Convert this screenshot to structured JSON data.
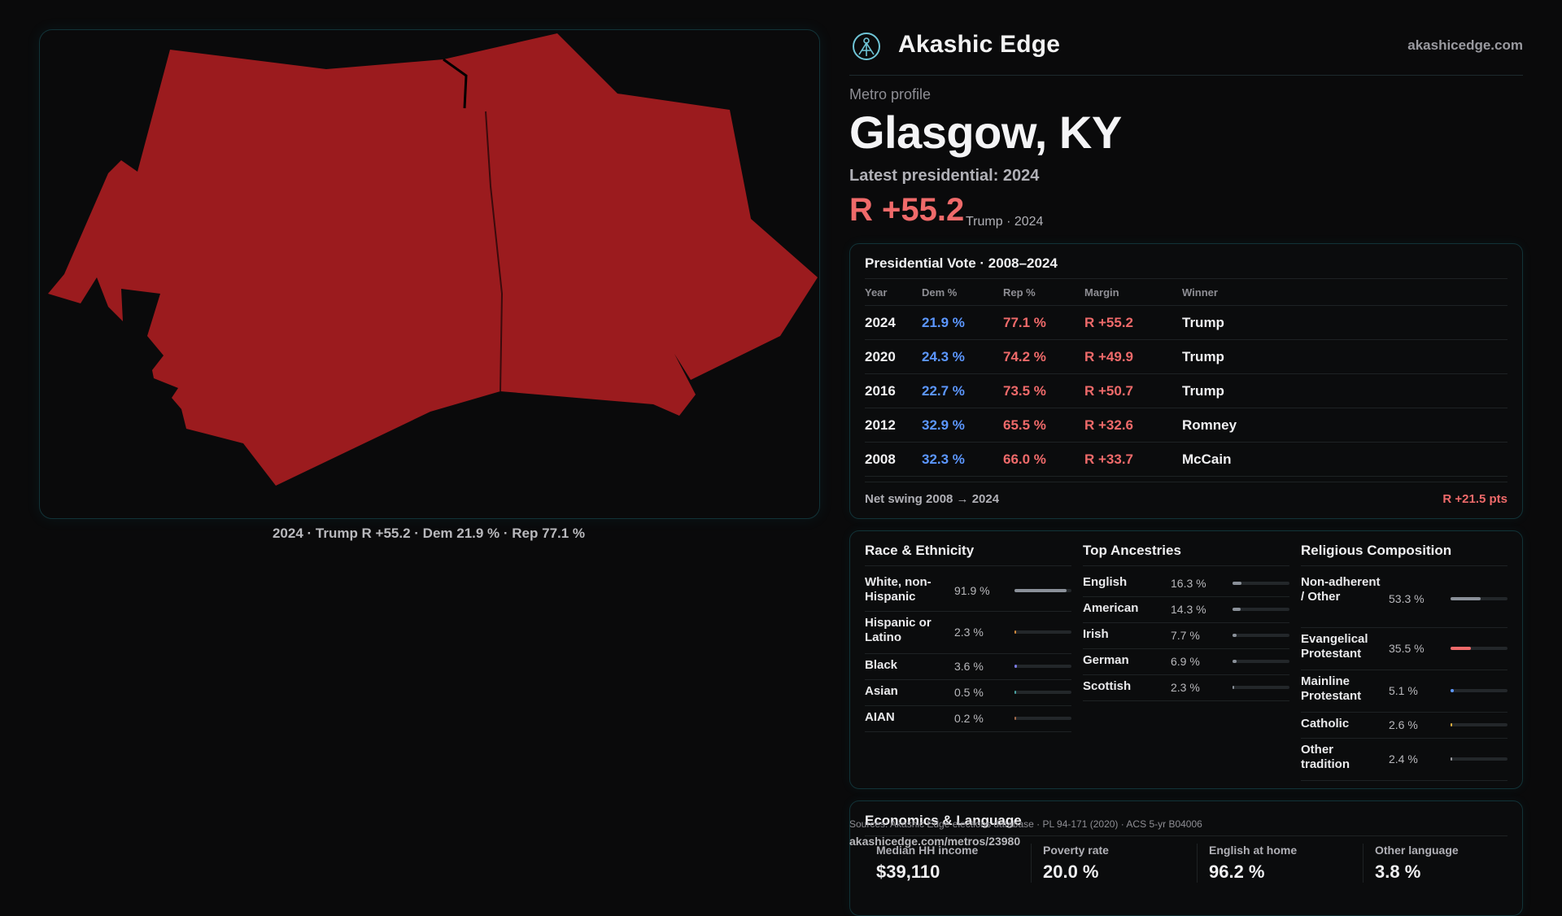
{
  "brand": {
    "name": "Akashic Edge",
    "site": "akashicedge.com"
  },
  "profile": {
    "kicker": "Metro profile",
    "title": "Glasgow, KY",
    "latest": "Latest presidential: 2024",
    "margin": "R +55.2",
    "margin_sub": "Trump · 2024"
  },
  "map": {
    "fill_color": "#9b1b1e",
    "caption": "2024 · Trump R +55.2 · Dem 21.9 % · Rep 77.1 %"
  },
  "vote": {
    "title": "Presidential Vote · 2008–2024",
    "headers": {
      "year": "Year",
      "dem": "Dem %",
      "rep": "Rep %",
      "margin": "Margin",
      "winner": "Winner"
    },
    "rows": [
      {
        "year": "2024",
        "dem": "21.9 %",
        "rep": "77.1 %",
        "margin": "R +55.2",
        "winner": "Trump"
      },
      {
        "year": "2020",
        "dem": "24.3 %",
        "rep": "74.2 %",
        "margin": "R +49.9",
        "winner": "Trump"
      },
      {
        "year": "2016",
        "dem": "22.7 %",
        "rep": "73.5 %",
        "margin": "R +50.7",
        "winner": "Trump"
      },
      {
        "year": "2012",
        "dem": "32.9 %",
        "rep": "65.5 %",
        "margin": "R +32.6",
        "winner": "Romney"
      },
      {
        "year": "2008",
        "dem": "32.3 %",
        "rep": "66.0 %",
        "margin": "R +33.7",
        "winner": "McCain"
      }
    ],
    "swing_label": "Net swing 2008 → 2024",
    "swing_value": "R +21.5 pts"
  },
  "race": {
    "title": "Race & Ethnicity",
    "items": [
      {
        "label": "White, non-Hispanic",
        "value": "91.9 %",
        "frac": 0.919,
        "color": "#8a9099"
      },
      {
        "label": "Hispanic or Latino",
        "value": "2.3 %",
        "frac": 0.023,
        "color": "#d08a3c"
      },
      {
        "label": "Black",
        "value": "3.6 %",
        "frac": 0.036,
        "color": "#7a7ae0"
      },
      {
        "label": "Asian",
        "value": "0.5 %",
        "frac": 0.005,
        "color": "#4aa3a3"
      },
      {
        "label": "AIAN",
        "value": "0.2 %",
        "frac": 0.002,
        "color": "#a36a4a"
      }
    ]
  },
  "ancestry": {
    "title": "Top Ancestries",
    "items": [
      {
        "label": "English",
        "value": "16.3 %",
        "frac": 0.163,
        "color": "#8a9099"
      },
      {
        "label": "American",
        "value": "14.3 %",
        "frac": 0.143,
        "color": "#8a9099"
      },
      {
        "label": "Irish",
        "value": "7.7 %",
        "frac": 0.077,
        "color": "#8a9099"
      },
      {
        "label": "German",
        "value": "6.9 %",
        "frac": 0.069,
        "color": "#8a9099"
      },
      {
        "label": "Scottish",
        "value": "2.3 %",
        "frac": 0.023,
        "color": "#8a9099"
      }
    ]
  },
  "religion": {
    "title": "Religious Composition",
    "items": [
      {
        "label": "Non-adherent / Other",
        "value": "53.3 %",
        "frac": 0.533,
        "color": "#8a9099"
      },
      {
        "label": "Evangelical Protestant",
        "value": "35.5 %",
        "frac": 0.355,
        "color": "#ef6a6a"
      },
      {
        "label": "Mainline Protestant",
        "value": "5.1 %",
        "frac": 0.051,
        "color": "#5c97ff"
      },
      {
        "label": "Catholic",
        "value": "2.6 %",
        "frac": 0.026,
        "color": "#e0b040"
      },
      {
        "label": "Other tradition",
        "value": "2.4 %",
        "frac": 0.024,
        "color": "#9a9aa0"
      }
    ]
  },
  "economics": {
    "title": "Economics & Language",
    "items": [
      {
        "label": "Median HH income",
        "value": "$39,110"
      },
      {
        "label": "Poverty rate",
        "value": "20.0 %"
      },
      {
        "label": "English at home",
        "value": "96.2 %"
      },
      {
        "label": "Other language",
        "value": "3.8 %"
      }
    ]
  },
  "footer": {
    "sources": "Sources: Akashic Edge elections database · PL 94-171 (2020) · ACS 5-yr B04006",
    "url": "akashicedge.com/metros/23980"
  }
}
